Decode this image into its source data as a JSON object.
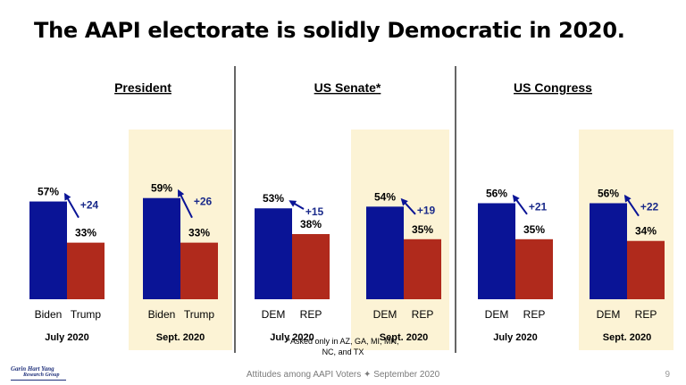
{
  "title": "The AAPI electorate is solidly Democratic in 2020.",
  "colors": {
    "dem": "#0a1496",
    "rep": "#b02a1c",
    "highlight": "#fcf3d5",
    "arrow": "#0a1496",
    "change_text": "#1a2a8a",
    "divider": "#000000"
  },
  "chart_data": [
    {
      "type": "bar",
      "title": "President",
      "categories": [
        "Biden",
        "Trump"
      ],
      "series": [
        {
          "name": "July 2020",
          "values": [
            57,
            33
          ],
          "change": "+24",
          "highlight": false
        },
        {
          "name": "Sept. 2020",
          "values": [
            59,
            33
          ],
          "change": "+26",
          "highlight": true
        }
      ],
      "ylim": [
        0,
        100
      ]
    },
    {
      "type": "bar",
      "title": "US Senate*",
      "categories": [
        "DEM",
        "REP"
      ],
      "series": [
        {
          "name": "July 2020",
          "values": [
            53,
            38
          ],
          "change": "+15",
          "highlight": false
        },
        {
          "name": "Sept. 2020",
          "values": [
            54,
            35
          ],
          "change": "+19",
          "highlight": true
        }
      ],
      "ylim": [
        0,
        100
      ]
    },
    {
      "type": "bar",
      "title": "US Congress",
      "categories": [
        "DEM",
        "REP"
      ],
      "series": [
        {
          "name": "July 2020",
          "values": [
            56,
            35
          ],
          "change": "+21",
          "highlight": false
        },
        {
          "name": "Sept. 2020",
          "values": [
            56,
            34
          ],
          "change": "+22",
          "highlight": true
        }
      ],
      "ylim": [
        0,
        100
      ]
    }
  ],
  "footer": {
    "note_line1": "*Asked only in AZ, GA, MI, MN,",
    "note_line2": "NC, and TX",
    "center": "Attitudes among AAPI Voters ✦ September 2020",
    "logo_line1": "Garin Hart Yang",
    "logo_line2": "Research Group",
    "page": "9"
  }
}
